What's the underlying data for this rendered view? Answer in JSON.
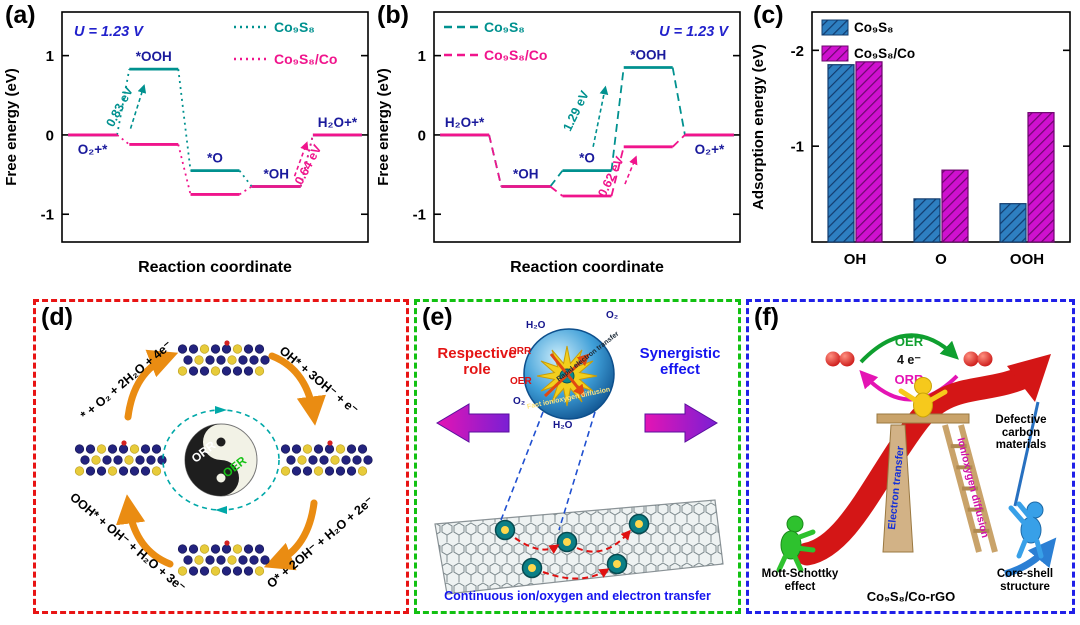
{
  "chart_data": [
    {
      "id": "a",
      "type": "line",
      "subtype": "reaction-free-energy-diagram",
      "panel_label": "(a)",
      "potential_label": "U = 1.23 V",
      "xlabel": "Reaction coordinate",
      "ylabel": "Free energy (eV)",
      "ylim": [
        -1.35,
        1.55
      ],
      "yticks": [
        -1,
        0,
        1
      ],
      "grid": false,
      "states": [
        "O₂+*",
        "*OOH",
        "*O",
        "*OH",
        "H₂O+*"
      ],
      "state_label_pos": [
        "below",
        "above",
        "above",
        "above",
        "above"
      ],
      "line_dash": "2,4",
      "legend_pos": "top-right",
      "potential_pos": "top-left",
      "series": [
        {
          "name": "Co₉S₈",
          "color": "#00918f",
          "values": [
            0,
            0.83,
            -0.45,
            -0.65,
            0
          ]
        },
        {
          "name": "Co₉S₈/Co",
          "color": "#f0148c",
          "values": [
            0,
            -0.12,
            -0.75,
            -0.65,
            0
          ]
        }
      ],
      "annotations": [
        {
          "text": "0.83 eV",
          "color": "#00918f",
          "u": 1.0,
          "e": 0.33,
          "rotate": -62,
          "arrow": [
            1.12,
            0.08,
            1.34,
            0.62
          ]
        },
        {
          "text": "0.64 eV",
          "color": "#f0148c",
          "u": 4.08,
          "e": -0.4,
          "rotate": -62,
          "arrow": [
            3.8,
            -0.52,
            4.0,
            -0.1
          ]
        }
      ]
    },
    {
      "id": "b",
      "type": "line",
      "subtype": "reaction-free-energy-diagram",
      "panel_label": "(b)",
      "potential_label": "U = 1.23 V",
      "xlabel": "Reaction coordinate",
      "ylabel": "Free energy (eV)",
      "ylim": [
        -1.35,
        1.55
      ],
      "yticks": [
        -1,
        0,
        1
      ],
      "grid": false,
      "states": [
        "H₂O+*",
        "*OH",
        "*O",
        "*OOH",
        "O₂+*"
      ],
      "state_label_pos": [
        "above",
        "above",
        "above",
        "above",
        "below"
      ],
      "line_dash": "8,5",
      "legend_pos": "top-left",
      "potential_pos": "top-right",
      "series": [
        {
          "name": "Co₉S₈",
          "color": "#00918f",
          "values": [
            0,
            -0.65,
            -0.45,
            0.85,
            0
          ]
        },
        {
          "name": "Co₉S₈/Co",
          "color": "#f0148c",
          "values": [
            0,
            -0.65,
            -0.77,
            -0.15,
            0
          ]
        }
      ],
      "annotations": [
        {
          "text": "1.29 eV",
          "color": "#00918f",
          "u": 2.38,
          "e": 0.28,
          "rotate": -64,
          "arrow": [
            2.6,
            -0.15,
            2.8,
            0.6
          ]
        },
        {
          "text": "0.62 eV",
          "color": "#f0148c",
          "u": 2.95,
          "e": -0.55,
          "rotate": -64,
          "arrow": [
            3.12,
            -0.62,
            3.3,
            -0.28
          ]
        }
      ]
    },
    {
      "id": "c",
      "type": "bar",
      "panel_label": "(c)",
      "ylabel": "Adsorption energy (eV)",
      "xlabel": "",
      "ylim": [
        0,
        -2.4
      ],
      "yticks": [
        -1,
        -2
      ],
      "axis_inverted": true,
      "grid": false,
      "legend_pos": "top-left",
      "hatch": "diagonal",
      "categories": [
        "OH",
        "O",
        "OOH"
      ],
      "series": [
        {
          "name": "Co₉S₈",
          "color": "#2e7fc1",
          "hatch_color": "#123c6e",
          "values": [
            -1.85,
            -0.45,
            -0.4
          ]
        },
        {
          "name": "Co₉S₈/Co",
          "color": "#cf11cf",
          "hatch_color": "#6e066e",
          "values": [
            -1.88,
            -0.75,
            -1.35
          ]
        }
      ]
    }
  ],
  "panel_d": {
    "label": "(d)",
    "border_color": "#e81414",
    "center": {
      "orr": "ORR",
      "oer": "OER"
    },
    "corner_labels": [
      {
        "pos": "top-left",
        "text": "* + O₂ + 2H₂O + 4e⁻"
      },
      {
        "pos": "top-right",
        "text": "OH* + 3OH⁻ + e⁻"
      },
      {
        "pos": "bottom-left",
        "text": "OOH* + OH⁻ + H₂O + 3e⁻"
      },
      {
        "pos": "bottom-right",
        "text": "O* + 2OH⁻ + H₂O + 2e⁻"
      }
    ]
  },
  "panel_e": {
    "label": "(e)",
    "border_color": "#12c112",
    "left_label": "Respective role",
    "right_label": "Synergistic effect",
    "bottom_label": "Continuous ion/oxygen and electron transfer",
    "sphere": {
      "o2_top": "O₂",
      "h2o_top": "H₂O",
      "orr": "ORR",
      "oer": "OER",
      "o2_left": "O₂",
      "h2o_bottom": "H₂O",
      "rapid": "Rapid electron transfer",
      "fast": "Fast ion/oxygen diffusion"
    }
  },
  "panel_f": {
    "label": "(f)",
    "border_color": "#2020e8",
    "cycle": {
      "oer": "OER",
      "electrons": "4 e⁻",
      "orr": "ORR"
    },
    "defective": "Defective carbon materials",
    "electron_transfer": "Electron transfer",
    "ion_diffusion": "Ion/oxygen diffusion",
    "mott": "Mott-Schottky effect",
    "material": "Co₉S₈/Co-rGO",
    "core_shell": "Core-shell structure"
  }
}
